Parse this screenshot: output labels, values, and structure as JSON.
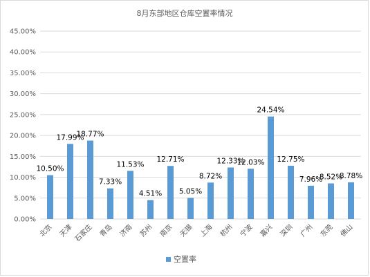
{
  "chart_data": {
    "type": "bar",
    "title": "8月东部地区仓库空置率情况",
    "categories": [
      "北京",
      "天津",
      "石家庄",
      "青岛",
      "济南",
      "苏州",
      "南京",
      "无锡",
      "上海",
      "杭州",
      "宁波",
      "嘉兴",
      "深圳",
      "广州",
      "东莞",
      "佛山"
    ],
    "series": [
      {
        "name": "空置率",
        "values": [
          10.5,
          17.99,
          18.77,
          7.33,
          11.53,
          4.51,
          12.71,
          5.05,
          8.72,
          12.33,
          12.03,
          24.54,
          12.75,
          7.96,
          8.52,
          8.78
        ],
        "data_labels": [
          "10.50%",
          "17.99%",
          "18.77%",
          "7.33%",
          "11.53%",
          "4.51%",
          "12.71%",
          "5.05%",
          "8.72%",
          "12.33%",
          "12.03%",
          "24.54%",
          "12.75%",
          "7.96%",
          "8.52%",
          "8.78%"
        ]
      }
    ],
    "xlabel": "",
    "ylabel": "",
    "ylim": [
      0,
      45
    ],
    "y_ticks": [
      "0.00%",
      "5.00%",
      "10.00%",
      "15.00%",
      "20.00%",
      "25.00%",
      "30.00%",
      "35.00%",
      "40.00%",
      "45.00%"
    ],
    "grid": true,
    "legend": "bottom",
    "colors": {
      "bar": "#5b9bd5",
      "grid": "#d9d9d9",
      "text": "#595959"
    }
  }
}
